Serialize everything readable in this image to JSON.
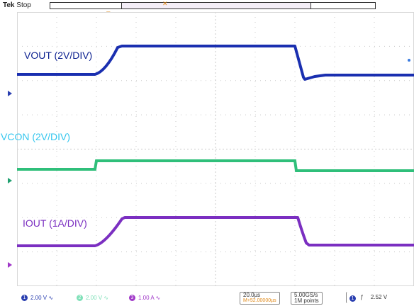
{
  "header": {
    "brand": "Tek",
    "status": "Stop",
    "trigger_marker": "T"
  },
  "labels": {
    "vout": "VOUT (2V/DIV)",
    "vcon": "VCON (2V/DIV)",
    "iout": "IOUT (1A/DIV)"
  },
  "markers": {
    "ch1": "1",
    "ch2": "2",
    "ch3": "3"
  },
  "status": {
    "ch1": {
      "num": "1",
      "scale": "2.00 V",
      "coupling": "∿"
    },
    "ch2": {
      "num": "2",
      "scale": "2.00 V",
      "coupling": "∿"
    },
    "ch3": {
      "num": "3",
      "scale": "1.00 A",
      "coupling": "∿"
    },
    "timebase": "20.0µs",
    "position": "M+52.00000µs",
    "sample_rate": "5.00GS/s",
    "record": "1M points",
    "trigger_ch": "1",
    "trigger_slope": "ƒ",
    "trigger_level": "2.52 V"
  },
  "colors": {
    "vout": "#1a2fb0",
    "vcon": "#2fbf7a",
    "iout": "#7b2fc1"
  }
}
